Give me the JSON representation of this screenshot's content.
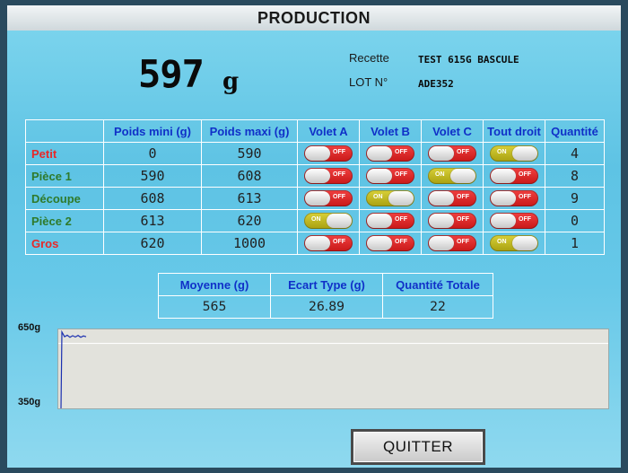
{
  "title": "PRODUCTION",
  "weight": {
    "value": "597",
    "unit": "g"
  },
  "info": {
    "recipe_label": "Recette",
    "recipe_value": "TEST 615G BASCULE",
    "lot_label": "LOT N°",
    "lot_value": "ADE352"
  },
  "colors": {
    "red_text": "#e82828",
    "green_text": "#2f7a2a",
    "header_blue": "#1030c8"
  },
  "table": {
    "headers": [
      "",
      "Poids mini (g)",
      "Poids maxi (g)",
      "Volet A",
      "Volet B",
      "Volet C",
      "Tout droit",
      "Quantité"
    ],
    "rows": [
      {
        "name": "Petit",
        "color": "#e82828",
        "min": "0",
        "max": "590",
        "toggles": [
          "OFF",
          "OFF",
          "OFF",
          "ON"
        ],
        "qty": "4"
      },
      {
        "name": "Pièce 1",
        "color": "#2f7a2a",
        "min": "590",
        "max": "608",
        "toggles": [
          "OFF",
          "OFF",
          "ON",
          "OFF"
        ],
        "qty": "8"
      },
      {
        "name": "Découpe",
        "color": "#2f7a2a",
        "min": "608",
        "max": "613",
        "toggles": [
          "OFF",
          "ON",
          "OFF",
          "OFF"
        ],
        "qty": "9"
      },
      {
        "name": "Pièce 2",
        "color": "#2f7a2a",
        "min": "613",
        "max": "620",
        "toggles": [
          "ON",
          "OFF",
          "OFF",
          "OFF"
        ],
        "qty": "0"
      },
      {
        "name": "Gros",
        "color": "#e82828",
        "min": "620",
        "max": "1000",
        "toggles": [
          "OFF",
          "OFF",
          "OFF",
          "ON"
        ],
        "qty": "1"
      }
    ]
  },
  "stats": {
    "headers": [
      "Moyenne (g)",
      "Ecart Type (g)",
      "Quantité Totale"
    ],
    "values": [
      "565",
      "26.89",
      "22"
    ]
  },
  "chart": {
    "y_max_label": "650g",
    "y_min_label": "350g"
  },
  "chart_data": {
    "type": "line",
    "ylim": [
      350,
      650
    ],
    "reference_lines": [
      597
    ],
    "series": [
      {
        "values": [
          350,
          640,
          622,
          628,
          620,
          626,
          621,
          627,
          620,
          625,
          622
        ]
      }
    ]
  },
  "buttons": {
    "quit": "QUITTER"
  }
}
